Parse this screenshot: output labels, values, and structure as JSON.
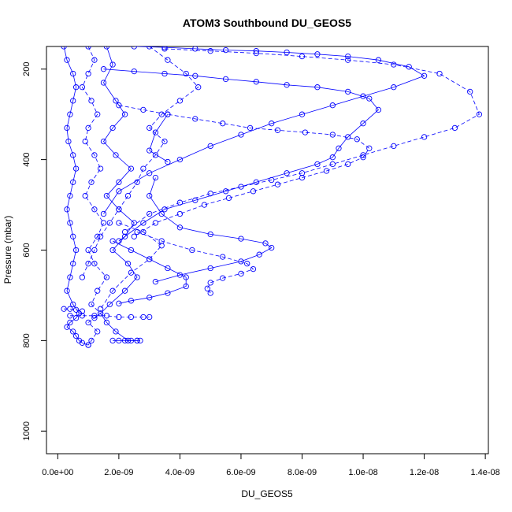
{
  "chart_data": {
    "type": "scatter",
    "title": "ATOM3 Southbound DU_GEOS5",
    "xlabel": "DU_GEOS5",
    "ylabel": "Pressure (mbar)",
    "xlim": [
      -3.7e-10,
      1.41e-08
    ],
    "ylim": [
      1050,
      150
    ],
    "y_reversed": true,
    "grid": false,
    "legend": "none",
    "x_ticks": [
      0,
      2e-09,
      4e-09,
      6e-09,
      8e-09,
      1e-08,
      1.2e-08,
      1.4e-08
    ],
    "x_tick_labels": [
      "0.0e+00",
      "2.0e-09",
      "4.0e-09",
      "6.0e-09",
      "8.0e-09",
      "1.0e-08",
      "1.2e-08",
      "1.4e-08"
    ],
    "y_ticks": [
      200,
      400,
      600,
      800,
      1000
    ],
    "y_tick_labels": [
      "200",
      "400",
      "600",
      "800",
      "1000"
    ],
    "marker": "open-circle",
    "color": "#0000ff",
    "series": [
      {
        "x": [
          2e-10,
          3e-10,
          5e-10,
          6e-10,
          5e-10,
          4e-10,
          3e-10,
          3.5e-10,
          5e-10,
          6e-10,
          5e-10,
          4e-10,
          3e-10,
          4e-10,
          5e-10,
          6e-10,
          5e-10,
          4e-10,
          3e-10,
          5e-10,
          7e-10,
          6e-10,
          4e-10,
          3e-10,
          5e-10,
          6e-10,
          7e-10,
          8e-10,
          1e-09
        ],
        "y": [
          150,
          180,
          210,
          240,
          270,
          300,
          330,
          360,
          390,
          420,
          450,
          480,
          510,
          540,
          570,
          600,
          630,
          660,
          690,
          720,
          740,
          750,
          760,
          770,
          780,
          790,
          800,
          805,
          810
        ]
      },
      {
        "x": [
          1e-09,
          1.2e-09,
          1e-09,
          8e-10,
          1.1e-09,
          1.3e-09,
          1e-09,
          9e-10,
          1.2e-09,
          1.4e-09,
          1.1e-09,
          9e-10,
          1.2e-09,
          1.5e-09,
          1.3e-09,
          1e-09,
          1.2e-09,
          1.6e-09,
          1.3e-09,
          1.1e-09,
          1.4e-09,
          1.2e-09,
          1e-09,
          1.3e-09,
          1.1e-09,
          1e-09
        ],
        "y": [
          150,
          180,
          210,
          240,
          270,
          300,
          330,
          360,
          390,
          420,
          450,
          480,
          510,
          540,
          570,
          600,
          630,
          660,
          690,
          720,
          740,
          750,
          760,
          780,
          800,
          810
        ]
      },
      {
        "x": [
          1.6e-09,
          1.8e-09,
          1.5e-09,
          1.9e-09,
          2.2e-09,
          1.8e-09,
          1.5e-09,
          1.9e-09,
          2.4e-09,
          2e-09,
          1.6e-09,
          2e-09,
          2.5e-09,
          2.2e-09,
          1.8e-09,
          2.3e-09,
          2.6e-09,
          2.2e-09,
          1.7e-09,
          1.4e-09,
          1.6e-09,
          1.9e-09,
          2.3e-09,
          2.6e-09
        ],
        "y": [
          150,
          190,
          230,
          270,
          300,
          330,
          360,
          390,
          420,
          450,
          480,
          510,
          540,
          570,
          600,
          630,
          660,
          690,
          720,
          740,
          760,
          780,
          800,
          800
        ]
      },
      {
        "x": [
          3e-09,
          3.6e-09,
          4.2e-09,
          4.6e-09,
          4e-09,
          3.4e-09,
          3e-09,
          3.5e-09,
          3.2e-09,
          2.8e-09,
          2.6e-09,
          2.3e-09,
          2e-09,
          1.7e-09,
          1.4e-09,
          1.2e-09,
          1e-09,
          8e-10
        ],
        "y": [
          150,
          180,
          210,
          240,
          270,
          300,
          330,
          360,
          390,
          420,
          450,
          480,
          510,
          540,
          570,
          600,
          630,
          660
        ]
      },
      {
        "x": [
          2.5e-09,
          3.5e-09,
          4.5e-09,
          5.5e-09,
          6.5e-09,
          7.5e-09,
          8.5e-09,
          9.5e-09,
          1.05e-08,
          1.15e-08,
          1.2e-08,
          1.1e-08,
          1e-08,
          9e-09,
          8e-09,
          7e-09,
          6e-09,
          5e-09,
          4e-09,
          3e-09,
          2e-09,
          1.5e-09
        ],
        "y": [
          150,
          152,
          155,
          158,
          160,
          163,
          167,
          172,
          180,
          195,
          215,
          240,
          260,
          280,
          300,
          320,
          345,
          370,
          400,
          430,
          470,
          520
        ]
      },
      {
        "x": [
          3.5e-09,
          5e-09,
          6.5e-09,
          8e-09,
          9.5e-09,
          1.1e-08,
          1.25e-08,
          1.35e-08,
          1.38e-08,
          1.3e-08,
          1.2e-08,
          1.1e-08,
          1e-08,
          9e-09,
          8e-09,
          7e-09,
          6e-09,
          5e-09,
          4e-09,
          3e-09,
          2.2e-09
        ],
        "y": [
          155,
          160,
          165,
          172,
          180,
          190,
          210,
          250,
          300,
          330,
          350,
          370,
          390,
          410,
          430,
          445,
          460,
          475,
          495,
          520,
          560
        ]
      },
      {
        "x": [
          1.5e-09,
          2.5e-09,
          3.5e-09,
          4.5e-09,
          5.5e-09,
          6.5e-09,
          7.5e-09,
          8.5e-09,
          9.5e-09,
          1.02e-08,
          1.05e-08,
          1e-08,
          9.5e-09,
          9.2e-09,
          9e-09,
          8.5e-09,
          7.5e-09,
          6.5e-09,
          5.5e-09,
          4.5e-09,
          3.5e-09,
          2.8e-09,
          2e-09
        ],
        "y": [
          200,
          205,
          210,
          215,
          222,
          228,
          235,
          240,
          250,
          265,
          290,
          320,
          350,
          375,
          395,
          410,
          430,
          450,
          470,
          490,
          510,
          540,
          580
        ]
      },
      {
        "x": [
          2e-09,
          2.8e-09,
          3.6e-09,
          4.5e-09,
          5.4e-09,
          6.3e-09,
          7.2e-09,
          8.1e-09,
          9e-09,
          9.8e-09,
          1.02e-08,
          1e-08,
          9.5e-09,
          8.8e-09,
          8e-09,
          7.2e-09,
          6.4e-09,
          5.6e-09,
          4.8e-09,
          4e-09,
          3.2e-09,
          2.5e-09
        ],
        "y": [
          280,
          290,
          300,
          310,
          320,
          330,
          335,
          340,
          345,
          355,
          375,
          395,
          410,
          425,
          440,
          455,
          470,
          485,
          500,
          520,
          540,
          570
        ]
      },
      {
        "x": [
          3.2e-09,
          3e-09,
          3.4e-09,
          4e-09,
          5e-09,
          6e-09,
          6.8e-09,
          7e-09,
          6.6e-09,
          6e-09,
          5e-09,
          4e-09,
          3.2e-09
        ],
        "y": [
          440,
          480,
          520,
          550,
          565,
          575,
          585,
          595,
          610,
          625,
          640,
          655,
          670
        ]
      },
      {
        "x": [
          2.6e-09,
          3.4e-09,
          4.4e-09,
          5.4e-09,
          6.2e-09,
          6.4e-09,
          6e-09,
          5.4e-09,
          5e-09,
          4.9e-09,
          5e-09
        ],
        "y": [
          560,
          580,
          600,
          615,
          630,
          642,
          652,
          662,
          672,
          685,
          695
        ]
      },
      {
        "x": [
          1.8e-09,
          2.4e-09,
          3e-09,
          3.6e-09,
          4.2e-09,
          4.2e-09,
          3.6e-09,
          3e-09,
          2.4e-09,
          2e-09
        ],
        "y": [
          580,
          600,
          620,
          640,
          660,
          680,
          695,
          705,
          712,
          718
        ]
      },
      {
        "x": [
          2e-09,
          2.8e-09,
          3.4e-09,
          3e-09,
          2.4e-09,
          1.8e-09,
          1.4e-09
        ],
        "y": [
          540,
          560,
          590,
          620,
          650,
          690,
          730
        ]
      },
      {
        "x": [
          3.6e-09,
          3.2e-09,
          3e-09,
          3.6e-09
        ],
        "y": [
          300,
          340,
          380,
          405
        ]
      },
      {
        "x": [
          4e-10,
          8e-10,
          1.2e-09,
          1.6e-09,
          2e-09,
          2.4e-09,
          2.8e-09,
          3e-09
        ],
        "y": [
          745,
          745,
          745,
          745,
          748,
          748,
          748,
          748
        ]
      },
      {
        "x": [
          1.8e-09,
          2e-09,
          2.2e-09,
          2.4e-09,
          2.6e-09,
          2.7e-09
        ],
        "y": [
          800,
          800,
          800,
          800,
          800,
          800
        ]
      },
      {
        "x": [
          2e-10,
          4e-10,
          6e-10,
          8e-10
        ],
        "y": [
          730,
          730,
          732,
          735
        ]
      }
    ]
  }
}
